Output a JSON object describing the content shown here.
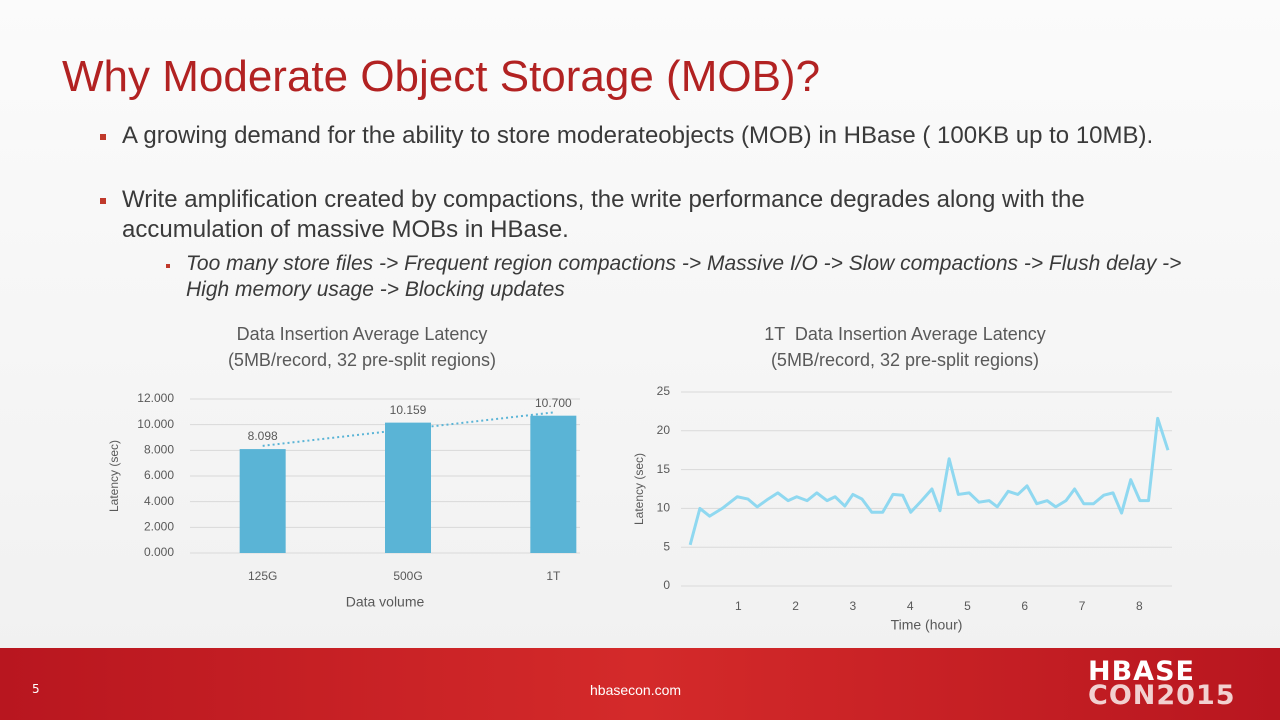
{
  "title": "Why Moderate Object Storage (MOB)?",
  "bullets": [
    {
      "text": "A growing demand for the ability to store moderateobjects (MOB) in HBase ( 100KB up to 10MB)."
    },
    {
      "text": "Write amplification created by compactions, the write performance degrades along with the accumulation of massive MOBs in HBase.",
      "sub": [
        "Too many store files -> Frequent region compactions -> Massive I/O -> Slow compactions -> Flush delay -> High memory usage -> Blocking updates"
      ]
    }
  ],
  "chart_data": [
    {
      "type": "bar",
      "title": "Data Insertion Average Latency",
      "subtitle": "(5MB/record, 32 pre-split regions)",
      "categories": [
        "125G",
        "500G",
        "1T"
      ],
      "values": [
        8.098,
        10.159,
        10.7
      ],
      "value_labels": [
        "8.098",
        "10.159",
        "10.700"
      ],
      "color": "#5ab4d6",
      "trendline": true,
      "x_label": "Data volume",
      "y_label": "Latency (sec)",
      "ylim": [
        0,
        12
      ],
      "yticks": [
        {
          "value": 0,
          "label": "0.000"
        },
        {
          "value": 2,
          "label": "2.000"
        },
        {
          "value": 4,
          "label": "4.000"
        },
        {
          "value": 6,
          "label": "6.000"
        },
        {
          "value": 8,
          "label": "8.000"
        },
        {
          "value": 10,
          "label": "10.000"
        },
        {
          "value": 12,
          "label": "12.000"
        }
      ],
      "grid": true
    },
    {
      "type": "line",
      "title": "1T  Data Insertion Average Latency",
      "subtitle": "(5MB/record, 32 pre-split regions)",
      "x_label": "Time (hour)",
      "y_label": "Latency (sec)",
      "color": "#8fd8f0",
      "x": [
        0.16,
        0.33,
        0.5,
        0.72,
        0.98,
        1.17,
        1.33,
        1.52,
        1.69,
        1.87,
        2.02,
        2.2,
        2.37,
        2.55,
        2.69,
        2.86,
        3.0,
        3.16,
        3.33,
        3.52,
        3.7,
        3.87,
        4.01,
        4.2,
        4.38,
        4.52,
        4.68,
        4.84,
        5.03,
        5.2,
        5.38,
        5.52,
        5.71,
        5.88,
        6.04,
        6.21,
        6.39,
        6.54,
        6.72,
        6.87,
        7.03,
        7.2,
        7.38,
        7.54,
        7.69,
        7.85,
        8.01,
        8.16,
        8.32,
        8.5
      ],
      "values": [
        5.3,
        10,
        9,
        10,
        11.5,
        11.2,
        10.2,
        11.2,
        12,
        11,
        11.5,
        11,
        12,
        11,
        11.5,
        10.3,
        11.8,
        11.2,
        9.5,
        9.5,
        11.8,
        11.7,
        9.5,
        11,
        12.5,
        9.7,
        16.4,
        11.8,
        12,
        10.8,
        11,
        10.2,
        12.2,
        11.8,
        12.9,
        10.6,
        11,
        10.2,
        11,
        12.5,
        10.6,
        10.6,
        11.7,
        12,
        9.4,
        13.7,
        11,
        11,
        21.6,
        17.5
      ],
      "xlim": [
        0,
        8.57
      ],
      "xticks": [
        1,
        2,
        3,
        4,
        5,
        6,
        7,
        8
      ],
      "ylim": [
        0,
        25
      ],
      "yticks": [
        0,
        5,
        10,
        15,
        20,
        25
      ],
      "grid": true
    }
  ],
  "footer": {
    "page": "5",
    "site": "hbasecon.com",
    "logo_top": "HBASE",
    "logo_bottom": "CON2015"
  }
}
